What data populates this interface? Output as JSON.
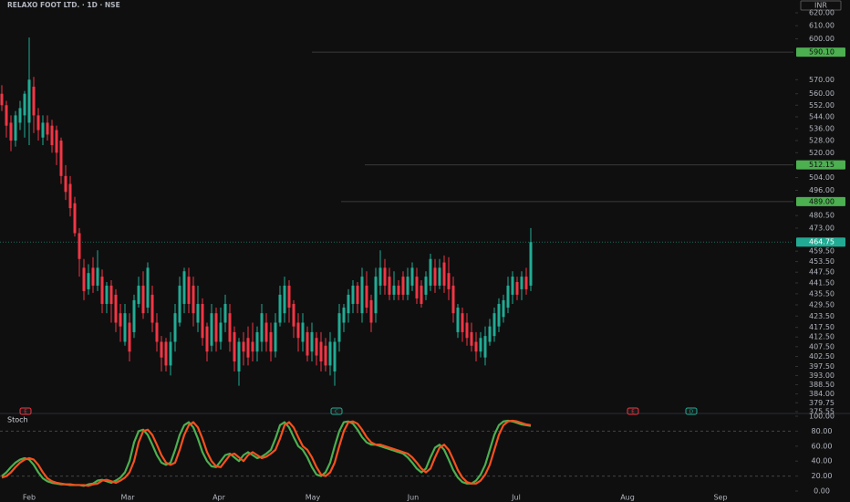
{
  "chart_data": [
    {
      "type": "candlestick",
      "title": "RELAXO FOOT LTD. · 1D · NSE",
      "currency": "INR",
      "log_scale": true,
      "grid": false,
      "up_color": "#22ab94",
      "down_color": "#f23645",
      "open": [
        560,
        552,
        540,
        528,
        540,
        545,
        540,
        565,
        545,
        530,
        540,
        538,
        535,
        528,
        505,
        500,
        488,
        470,
        450,
        438,
        450,
        440,
        445,
        430,
        440,
        435,
        425,
        410,
        420,
        415,
        430,
        440,
        428,
        435,
        420,
        410,
        410,
        398,
        410,
        420,
        430,
        445,
        440,
        420,
        430,
        418,
        408,
        425,
        410,
        420,
        425,
        415,
        395,
        410,
        412,
        410,
        405,
        410,
        420,
        415,
        405,
        420,
        425,
        440,
        430,
        420,
        410,
        415,
        405,
        412,
        410,
        408,
        398,
        395,
        410,
        420,
        425,
        430,
        440,
        425,
        440,
        432,
        425,
        440,
        450,
        445,
        435,
        440,
        445,
        435,
        440,
        445,
        440,
        435,
        440,
        450,
        440,
        453,
        447,
        440,
        415,
        425,
        420,
        415,
        410,
        405,
        402,
        410,
        413,
        418,
        423,
        428,
        435,
        442,
        438,
        445,
        440
      ],
      "high": [
        566,
        555,
        545,
        548,
        555,
        562,
        601,
        572,
        550,
        545,
        545,
        542,
        538,
        530,
        512,
        505,
        492,
        473,
        455,
        452,
        456,
        460,
        449,
        442,
        443,
        438,
        430,
        430,
        425,
        435,
        445,
        448,
        453,
        440,
        425,
        413,
        412,
        415,
        430,
        445,
        450,
        450,
        445,
        440,
        433,
        420,
        430,
        428,
        428,
        435,
        430,
        418,
        412,
        415,
        418,
        420,
        418,
        430,
        425,
        420,
        425,
        440,
        445,
        443,
        432,
        425,
        425,
        418,
        420,
        415,
        415,
        412,
        415,
        412,
        430,
        430,
        438,
        443,
        442,
        450,
        448,
        435,
        450,
        460,
        455,
        450,
        448,
        443,
        448,
        450,
        453,
        450,
        443,
        448,
        458,
        455,
        455,
        457,
        456,
        445,
        430,
        428,
        425,
        420,
        415,
        415,
        418,
        422,
        428,
        433,
        435,
        445,
        448,
        445,
        448,
        450,
        473
      ],
      "low": [
        548,
        530,
        521,
        524,
        535,
        530,
        525,
        533,
        528,
        525,
        528,
        520,
        512,
        500,
        490,
        480,
        468,
        445,
        432,
        435,
        436,
        437,
        425,
        425,
        420,
        415,
        410,
        408,
        400,
        412,
        428,
        422,
        425,
        415,
        405,
        395,
        395,
        393,
        405,
        418,
        425,
        425,
        418,
        415,
        408,
        400,
        405,
        405,
        406,
        415,
        405,
        395,
        388,
        398,
        398,
        400,
        400,
        405,
        405,
        400,
        402,
        418,
        420,
        420,
        412,
        405,
        405,
        400,
        400,
        398,
        395,
        395,
        393,
        388,
        405,
        415,
        420,
        425,
        425,
        420,
        425,
        415,
        420,
        435,
        435,
        432,
        432,
        432,
        432,
        432,
        437,
        430,
        428,
        432,
        437,
        436,
        438,
        436,
        432,
        420,
        412,
        410,
        408,
        405,
        400,
        402,
        398,
        408,
        410,
        415,
        420,
        425,
        430,
        432,
        432,
        435,
        437
      ],
      "close": [
        552,
        538,
        528,
        545,
        550,
        560,
        570,
        545,
        535,
        540,
        532,
        525,
        520,
        505,
        495,
        485,
        470,
        455,
        437,
        447,
        440,
        450,
        430,
        440,
        430,
        420,
        418,
        425,
        405,
        432,
        440,
        425,
        450,
        420,
        410,
        402,
        398,
        410,
        425,
        440,
        448,
        430,
        425,
        430,
        412,
        405,
        425,
        410,
        420,
        430,
        410,
        400,
        410,
        405,
        402,
        405,
        415,
        425,
        410,
        405,
        420,
        435,
        440,
        428,
        418,
        412,
        420,
        403,
        415,
        403,
        400,
        398,
        410,
        410,
        425,
        428,
        435,
        440,
        430,
        445,
        428,
        420,
        445,
        450,
        440,
        435,
        440,
        435,
        435,
        445,
        450,
        433,
        430,
        445,
        455,
        440,
        450,
        440,
        438,
        425,
        428,
        415,
        412,
        408,
        405,
        412,
        413,
        418,
        425,
        430,
        432,
        440,
        445,
        435,
        445,
        438,
        464.75
      ],
      "ylim": [
        375.55,
        620
      ],
      "yticks": [
        {
          "value": 620,
          "label": "620.00"
        },
        {
          "value": 610,
          "label": "610.00"
        },
        {
          "value": 600,
          "label": "600.00"
        },
        {
          "value": 570,
          "label": "570.00"
        },
        {
          "value": 560,
          "label": "560.00"
        },
        {
          "value": 552,
          "label": "552.00"
        },
        {
          "value": 544,
          "label": "544.00"
        },
        {
          "value": 536,
          "label": "536.00"
        },
        {
          "value": 528,
          "label": "528.00"
        },
        {
          "value": 520,
          "label": "520.00"
        },
        {
          "value": 504,
          "label": "504.00"
        },
        {
          "value": 496,
          "label": "496.00"
        },
        {
          "value": 480.5,
          "label": "480.50"
        },
        {
          "value": 473,
          "label": "473.00"
        },
        {
          "value": 459.5,
          "label": "459.50"
        },
        {
          "value": 453.5,
          "label": "453.50"
        },
        {
          "value": 447.5,
          "label": "447.50"
        },
        {
          "value": 441.5,
          "label": "441.50"
        },
        {
          "value": 435.5,
          "label": "435.50"
        },
        {
          "value": 429.5,
          "label": "429.50"
        },
        {
          "value": 423.5,
          "label": "423.50"
        },
        {
          "value": 417.5,
          "label": "417.50"
        },
        {
          "value": 412.5,
          "label": "412.50"
        },
        {
          "value": 407.5,
          "label": "407.50"
        },
        {
          "value": 402.5,
          "label": "402.50"
        },
        {
          "value": 397.5,
          "label": "397.50"
        },
        {
          "value": 393,
          "label": "393.00"
        },
        {
          "value": 388.5,
          "label": "388.50"
        },
        {
          "value": 384,
          "label": "384.00"
        },
        {
          "value": 379.75,
          "label": "379.75"
        },
        {
          "value": 375.55,
          "label": "375.55"
        }
      ],
      "price_lines": [
        {
          "value": 590.1,
          "label": "590.10",
          "x_start": 68,
          "color": "#4caf50"
        },
        {
          "value": 512.15,
          "label": "512.15",
          "x_start": 79.6,
          "color": "#4caf50"
        },
        {
          "value": 489,
          "label": "489.00",
          "x_start": 74.4,
          "color": "#4caf50"
        }
      ],
      "last_price": {
        "value": 464.75,
        "label": "464.75",
        "color": "#22ab94"
      },
      "events": [
        {
          "x": 5.2,
          "label": "E",
          "color": "#f23645"
        },
        {
          "x": 73.4,
          "label": "C",
          "color": "#22ab94"
        },
        {
          "x": 138.4,
          "label": "E",
          "color": "#f23645"
        },
        {
          "x": 151.2,
          "label": "D",
          "color": "#22ab94"
        }
      ]
    },
    {
      "type": "line",
      "title": "Stoch",
      "series": [
        {
          "color": "#4caf50",
          "values": [
            20,
            25,
            32,
            38,
            42,
            44,
            42,
            35,
            25,
            17,
            13,
            11,
            10,
            9,
            9,
            8,
            8,
            8,
            7,
            9,
            10,
            14,
            15,
            13,
            11,
            14,
            18,
            25,
            40,
            65,
            80,
            82,
            75,
            62,
            48,
            38,
            35,
            38,
            55,
            75,
            88,
            92,
            85,
            70,
            52,
            40,
            33,
            32,
            40,
            48,
            50,
            45,
            40,
            48,
            52,
            48,
            44,
            46,
            50,
            55,
            70,
            88,
            92,
            85,
            72,
            60,
            55,
            45,
            32,
            22,
            20,
            25,
            38,
            60,
            80,
            92,
            93,
            90,
            82,
            72,
            65,
            62,
            62,
            60,
            58,
            56,
            54,
            52,
            50,
            45,
            38,
            30,
            25,
            30,
            45,
            58,
            62,
            55,
            42,
            28,
            18,
            12,
            10,
            10,
            14,
            22,
            35,
            55,
            75,
            88,
            93,
            94,
            93,
            91,
            89,
            88,
            87
          ]
        },
        {
          "color": "#f4511e",
          "values": [
            18,
            20,
            25,
            32,
            38,
            42,
            44,
            42,
            35,
            25,
            17,
            13,
            11,
            10,
            9,
            9,
            8,
            8,
            8,
            7,
            9,
            10,
            14,
            15,
            13,
            11,
            14,
            18,
            25,
            40,
            65,
            80,
            82,
            75,
            62,
            48,
            38,
            35,
            38,
            55,
            75,
            88,
            92,
            85,
            70,
            52,
            40,
            33,
            32,
            40,
            48,
            50,
            45,
            40,
            48,
            52,
            48,
            44,
            46,
            50,
            55,
            70,
            88,
            92,
            85,
            72,
            60,
            55,
            45,
            32,
            22,
            20,
            25,
            38,
            60,
            80,
            92,
            93,
            90,
            82,
            72,
            65,
            62,
            62,
            60,
            58,
            56,
            54,
            52,
            50,
            45,
            38,
            30,
            25,
            30,
            45,
            58,
            62,
            55,
            42,
            28,
            18,
            12,
            10,
            10,
            14,
            22,
            35,
            55,
            75,
            88,
            93,
            94,
            93,
            91,
            89,
            88
          ]
        }
      ],
      "ylim": [
        0,
        100
      ],
      "yticks": [
        {
          "value": 100,
          "label": "100.00"
        },
        {
          "value": 80,
          "label": "80.00"
        },
        {
          "value": 60,
          "label": "60.00"
        },
        {
          "value": 40,
          "label": "40.00"
        },
        {
          "value": 20,
          "label": "20.00"
        },
        {
          "value": 0,
          "label": "0.00"
        }
      ],
      "hlines": [
        80,
        20
      ],
      "xlim": [
        -0.4,
        173.6
      ],
      "xticks": [
        {
          "value": 6,
          "label": "Feb"
        },
        {
          "value": 27.6,
          "label": "Mar"
        },
        {
          "value": 47.6,
          "label": "Apr"
        },
        {
          "value": 68.2,
          "label": "May"
        },
        {
          "value": 90.2,
          "label": "Jun"
        },
        {
          "value": 112.8,
          "label": "Jul"
        },
        {
          "value": 137.2,
          "label": "Aug"
        },
        {
          "value": 157.6,
          "label": "Sep"
        }
      ]
    }
  ]
}
